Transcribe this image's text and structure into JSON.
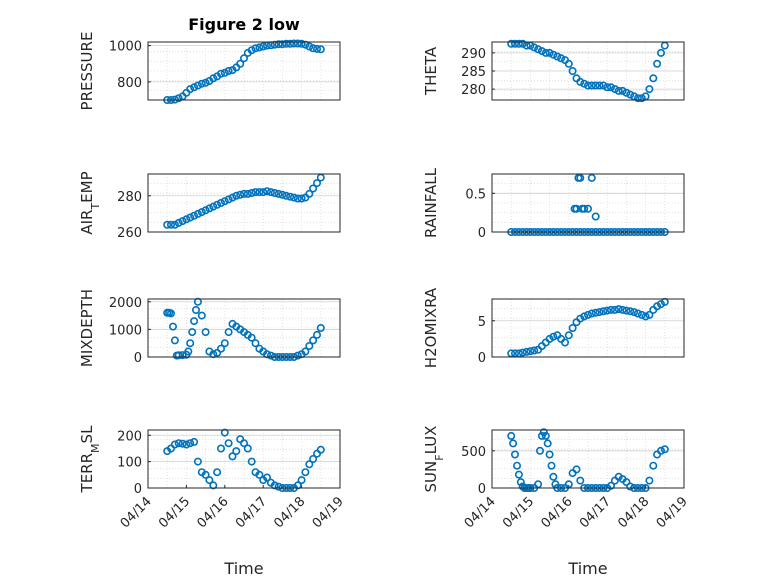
{
  "figure": {
    "title": "Figure 2 low",
    "xlabel": "Time"
  },
  "chart_data": [
    {
      "type": "scatter",
      "ylabel": "PRESSURE",
      "ylim": [
        700,
        1020
      ],
      "yticks": [
        "800",
        "1000"
      ],
      "xlim": [
        0,
        5
      ],
      "xticks": [],
      "grid": true,
      "color": "#0072BD",
      "x": [
        0.5,
        0.6,
        0.7,
        0.8,
        0.9,
        1.0,
        1.1,
        1.2,
        1.3,
        1.4,
        1.5,
        1.6,
        1.7,
        1.8,
        1.9,
        2.0,
        2.1,
        2.2,
        2.3,
        2.4,
        2.5,
        2.6,
        2.7,
        2.8,
        2.9,
        3.0,
        3.1,
        3.2,
        3.3,
        3.4,
        3.5,
        3.6,
        3.7,
        3.8,
        3.9,
        4.0,
        4.1,
        4.2,
        4.3,
        4.4,
        4.5
      ],
      "y": [
        700,
        700,
        702,
        710,
        720,
        740,
        760,
        770,
        780,
        790,
        795,
        805,
        820,
        830,
        845,
        850,
        860,
        865,
        880,
        900,
        930,
        960,
        975,
        985,
        990,
        995,
        1000,
        1002,
        1005,
        1008,
        1008,
        1010,
        1010,
        1012,
        1012,
        1010,
        1005,
        995,
        985,
        982,
        980
      ]
    },
    {
      "type": "scatter",
      "ylabel": "THETA",
      "ylim": [
        277,
        293
      ],
      "yticks": [
        "280",
        "285",
        "290"
      ],
      "xlim": [
        0,
        5
      ],
      "xticks": [],
      "grid": true,
      "color": "#0072BD",
      "x": [
        0.5,
        0.6,
        0.7,
        0.8,
        0.9,
        1.0,
        1.1,
        1.2,
        1.3,
        1.4,
        1.5,
        1.6,
        1.7,
        1.8,
        1.9,
        2.0,
        2.1,
        2.2,
        2.3,
        2.4,
        2.5,
        2.6,
        2.7,
        2.8,
        2.9,
        3.0,
        3.1,
        3.2,
        3.3,
        3.4,
        3.5,
        3.6,
        3.7,
        3.8,
        3.9,
        4.0,
        4.1,
        4.2,
        4.3,
        4.4,
        4.5
      ],
      "y": [
        292.5,
        292.5,
        292.5,
        292.5,
        292,
        292,
        291.5,
        291,
        290.5,
        290,
        290,
        289.5,
        289,
        288.5,
        288,
        287,
        285,
        283,
        282,
        281.5,
        281,
        281,
        281,
        281,
        281,
        280.5,
        280.5,
        280,
        279.5,
        279.5,
        279,
        278.5,
        278,
        277.5,
        277.5,
        278,
        280,
        283,
        287,
        290,
        292
      ]
    },
    {
      "type": "scatter",
      "ylabel": "AIR_TEMP",
      "ylim": [
        260,
        292
      ],
      "yticks": [
        "260",
        "280"
      ],
      "xlim": [
        0,
        5
      ],
      "xticks": [],
      "grid": true,
      "color": "#0072BD",
      "x": [
        0.5,
        0.6,
        0.7,
        0.8,
        0.9,
        1.0,
        1.1,
        1.2,
        1.3,
        1.4,
        1.5,
        1.6,
        1.7,
        1.8,
        1.9,
        2.0,
        2.1,
        2.2,
        2.3,
        2.4,
        2.5,
        2.6,
        2.7,
        2.8,
        2.9,
        3.0,
        3.1,
        3.2,
        3.3,
        3.4,
        3.5,
        3.6,
        3.7,
        3.8,
        3.9,
        4.0,
        4.1,
        4.2,
        4.3,
        4.4,
        4.5
      ],
      "y": [
        264,
        264,
        264,
        265,
        266,
        267,
        268,
        269,
        270,
        271,
        272,
        273,
        274,
        275,
        276,
        277,
        278,
        279,
        280,
        280.5,
        281,
        281,
        281.5,
        282,
        282,
        282,
        282.5,
        282,
        281.5,
        281,
        280.5,
        280,
        279.5,
        279,
        278.5,
        278.5,
        279,
        281,
        284,
        287,
        290
      ]
    },
    {
      "type": "scatter",
      "ylabel": "RAINFALL",
      "ylim": [
        0,
        0.75
      ],
      "yticks": [
        "0",
        "0.5"
      ],
      "xlim": [
        0,
        5
      ],
      "xticks": [],
      "grid": true,
      "color": "#0072BD",
      "x": [
        0.5,
        0.6,
        0.7,
        0.8,
        0.9,
        1.0,
        1.1,
        1.2,
        1.3,
        1.4,
        1.5,
        1.6,
        1.7,
        1.8,
        1.9,
        2.0,
        2.1,
        2.2,
        2.3,
        2.4,
        2.5,
        2.6,
        2.7,
        2.8,
        2.9,
        3.0,
        3.1,
        3.2,
        3.3,
        3.4,
        3.5,
        3.6,
        3.7,
        3.8,
        3.9,
        4.0,
        4.1,
        4.2,
        4.3,
        4.4,
        4.5,
        2.15,
        2.2,
        2.25,
        2.3,
        2.35,
        2.4,
        2.5,
        2.6,
        2.7
      ],
      "y": [
        0,
        0,
        0,
        0,
        0,
        0,
        0,
        0,
        0,
        0,
        0,
        0,
        0,
        0,
        0,
        0,
        0,
        0,
        0,
        0,
        0,
        0,
        0,
        0,
        0,
        0,
        0,
        0,
        0,
        0,
        0,
        0,
        0,
        0,
        0,
        0,
        0,
        0,
        0,
        0,
        0,
        0.3,
        0.3,
        0.7,
        0.7,
        0.3,
        0.3,
        0.3,
        0.7,
        0.2
      ]
    },
    {
      "type": "scatter",
      "ylabel": "MIXDEPTH",
      "ylim": [
        0,
        2100
      ],
      "yticks": [
        "0",
        "1000",
        "2000"
      ],
      "xlim": [
        0,
        5
      ],
      "xticks": [],
      "grid": true,
      "color": "#0072BD",
      "x": [
        0.5,
        0.55,
        0.6,
        0.65,
        0.7,
        0.75,
        0.8,
        0.9,
        1.0,
        1.05,
        1.1,
        1.15,
        1.2,
        1.25,
        1.3,
        1.4,
        1.5,
        1.6,
        1.7,
        1.8,
        1.9,
        2.0,
        2.1,
        2.2,
        2.3,
        2.4,
        2.5,
        2.6,
        2.7,
        2.8,
        2.9,
        3.0,
        3.1,
        3.2,
        3.3,
        3.4,
        3.5,
        3.6,
        3.7,
        3.8,
        3.9,
        4.0,
        4.1,
        4.2,
        4.3,
        4.4,
        4.5
      ],
      "y": [
        1600,
        1600,
        1580,
        1100,
        600,
        50,
        60,
        70,
        80,
        200,
        500,
        900,
        1300,
        1700,
        2000,
        1500,
        900,
        200,
        100,
        150,
        300,
        500,
        900,
        1200,
        1100,
        1000,
        900,
        800,
        700,
        500,
        300,
        200,
        100,
        50,
        0,
        0,
        0,
        0,
        0,
        0,
        50,
        100,
        200,
        400,
        600,
        800,
        1050
      ]
    },
    {
      "type": "scatter",
      "ylabel": "H2OMIXRA",
      "ylim": [
        0,
        8
      ],
      "yticks": [
        "0",
        "5"
      ],
      "xlim": [
        0,
        5
      ],
      "xticks": [],
      "grid": true,
      "color": "#0072BD",
      "x": [
        0.5,
        0.6,
        0.7,
        0.8,
        0.9,
        1.0,
        1.1,
        1.2,
        1.3,
        1.4,
        1.5,
        1.6,
        1.7,
        1.8,
        1.9,
        2.0,
        2.1,
        2.2,
        2.3,
        2.4,
        2.5,
        2.6,
        2.7,
        2.8,
        2.9,
        3.0,
        3.1,
        3.2,
        3.3,
        3.4,
        3.5,
        3.6,
        3.7,
        3.8,
        3.9,
        4.0,
        4.1,
        4.2,
        4.3,
        4.4,
        4.5
      ],
      "y": [
        0.5,
        0.5,
        0.5,
        0.6,
        0.7,
        0.8,
        0.9,
        1.0,
        1.5,
        2.0,
        2.5,
        2.8,
        3.0,
        2.5,
        2.0,
        3.0,
        4.0,
        4.8,
        5.3,
        5.6,
        5.8,
        6.0,
        6.1,
        6.2,
        6.3,
        6.4,
        6.5,
        6.5,
        6.6,
        6.5,
        6.4,
        6.3,
        6.2,
        6.0,
        5.8,
        5.6,
        5.8,
        6.5,
        7.0,
        7.3,
        7.6
      ]
    },
    {
      "type": "scatter",
      "ylabel": "TERR_MSL",
      "ylim": [
        0,
        220
      ],
      "yticks": [
        "0",
        "100",
        "200"
      ],
      "xlim": [
        0,
        5
      ],
      "xticks": [
        "04/14",
        "04/15",
        "04/16",
        "04/17",
        "04/18",
        "04/19"
      ],
      "grid": true,
      "color": "#0072BD",
      "x": [
        0.5,
        0.6,
        0.7,
        0.8,
        0.9,
        1.0,
        1.1,
        1.2,
        1.3,
        1.4,
        1.5,
        1.6,
        1.7,
        1.8,
        1.9,
        2.0,
        2.1,
        2.2,
        2.3,
        2.4,
        2.5,
        2.6,
        2.7,
        2.8,
        2.9,
        3.0,
        3.1,
        3.2,
        3.3,
        3.4,
        3.5,
        3.6,
        3.7,
        3.8,
        3.9,
        4.0,
        4.1,
        4.2,
        4.3,
        4.4,
        4.5
      ],
      "y": [
        140,
        150,
        165,
        170,
        168,
        165,
        170,
        175,
        100,
        60,
        50,
        30,
        10,
        60,
        150,
        210,
        170,
        120,
        140,
        185,
        170,
        150,
        100,
        60,
        50,
        30,
        40,
        20,
        10,
        5,
        0,
        0,
        0,
        0,
        10,
        30,
        60,
        90,
        110,
        130,
        145
      ]
    },
    {
      "type": "scatter",
      "ylabel": "SUN_FLUX",
      "ylim": [
        0,
        780
      ],
      "yticks": [
        "0",
        "500"
      ],
      "xlim": [
        0,
        5
      ],
      "xticks": [
        "04/14",
        "04/15",
        "04/16",
        "04/17",
        "04/18",
        "04/19"
      ],
      "grid": true,
      "color": "#0072BD",
      "x": [
        0.5,
        0.55,
        0.6,
        0.65,
        0.7,
        0.75,
        0.8,
        0.85,
        0.9,
        0.95,
        1.0,
        1.1,
        1.2,
        1.25,
        1.3,
        1.35,
        1.4,
        1.45,
        1.5,
        1.55,
        1.6,
        1.65,
        1.7,
        1.8,
        1.9,
        2.0,
        2.1,
        2.2,
        2.3,
        2.4,
        2.5,
        2.6,
        2.7,
        2.8,
        2.9,
        3.0,
        3.1,
        3.2,
        3.3,
        3.4,
        3.5,
        3.6,
        3.7,
        3.8,
        3.9,
        4.0,
        4.1,
        4.2,
        4.3,
        4.4,
        4.5
      ],
      "y": [
        700,
        600,
        450,
        300,
        180,
        80,
        20,
        0,
        0,
        0,
        0,
        0,
        50,
        500,
        700,
        750,
        700,
        600,
        450,
        300,
        150,
        50,
        0,
        0,
        0,
        50,
        200,
        250,
        100,
        0,
        0,
        0,
        0,
        0,
        0,
        0,
        30,
        100,
        150,
        120,
        80,
        20,
        0,
        0,
        0,
        0,
        100,
        300,
        450,
        500,
        520
      ]
    }
  ]
}
